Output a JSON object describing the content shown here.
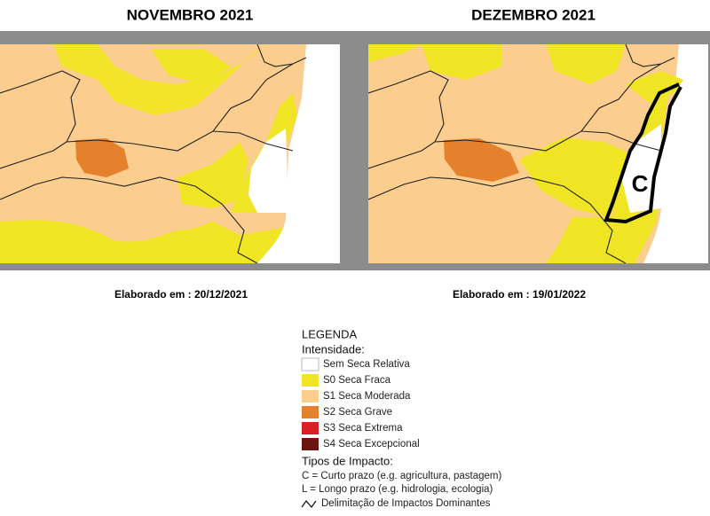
{
  "panels": [
    {
      "title": "NOVEMBRO 2021",
      "caption": "Elaborado em : 20/12/2021"
    },
    {
      "title": "DEZEMBRO 2021",
      "caption": "Elaborado em : 19/01/2022",
      "impact_label": "C"
    }
  ],
  "legend": {
    "title": "LEGENDA",
    "intensity_title": "Intensidade:",
    "intensity": [
      {
        "label": "Sem Seca Relativa",
        "color": "#ffffff"
      },
      {
        "label": "S0 Seca Fraca",
        "color": "#f0e524"
      },
      {
        "label": "S1 Seca Moderada",
        "color": "#fbcd8e"
      },
      {
        "label": "S2 Seca Grave",
        "color": "#e5812c"
      },
      {
        "label": "S3 Seca Extrema",
        "color": "#dc1f26"
      },
      {
        "label": "S4 Seca Excepcional",
        "color": "#6b1511"
      }
    ],
    "impact_title": "Tipos de Impacto:",
    "impact_types": [
      "C = Curto prazo (e.g. agricultura, pastagem)",
      "L = Longo prazo (e.g. hidrologia, ecologia)"
    ],
    "boundary": "Delimitação de Impactos Dominantes"
  }
}
